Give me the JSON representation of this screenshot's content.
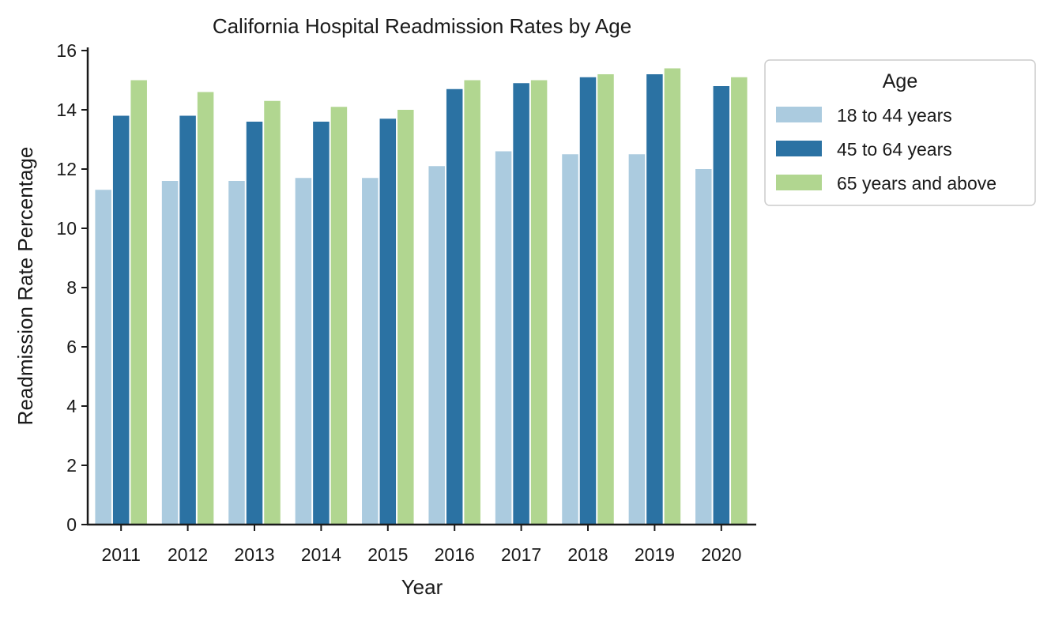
{
  "chart_data": {
    "type": "bar",
    "title": "California Hospital Readmission Rates by Age",
    "xlabel": "Year",
    "ylabel": "Readmission Rate Percentage",
    "categories": [
      "2011",
      "2012",
      "2013",
      "2014",
      "2015",
      "2016",
      "2017",
      "2018",
      "2019",
      "2020"
    ],
    "ylim": [
      0,
      16
    ],
    "yticks": [
      "0",
      "2",
      "4",
      "6",
      "8",
      "10",
      "12",
      "14",
      "16"
    ],
    "series": [
      {
        "name": "18 to 44 years",
        "color": "#abcbdf",
        "values": [
          11.3,
          11.6,
          11.6,
          11.7,
          11.7,
          12.1,
          12.6,
          12.5,
          12.5,
          12.0
        ]
      },
      {
        "name": "45 to 64 years",
        "color": "#2b72a3",
        "values": [
          13.8,
          13.8,
          13.6,
          13.6,
          13.7,
          14.7,
          14.9,
          15.1,
          15.2,
          14.8
        ]
      },
      {
        "name": "65 years and above",
        "color": "#b1d690",
        "values": [
          15.0,
          14.6,
          14.3,
          14.1,
          14.0,
          15.0,
          15.0,
          15.2,
          15.4,
          15.1
        ]
      }
    ],
    "legend": {
      "title": "Age",
      "placement": "outside-right-top"
    },
    "grid": false
  }
}
